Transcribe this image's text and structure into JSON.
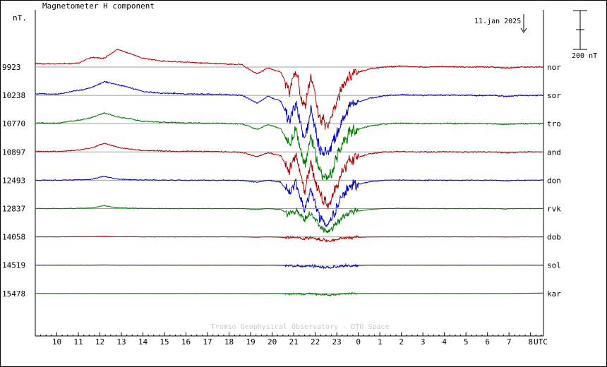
{
  "chart_data": {
    "type": "line",
    "title": "Magnetometer H component",
    "ylabel": "nT.",
    "date_label": "11.jan 2025",
    "scale_bar_label": "200 nT",
    "scale_bar_nT": 200,
    "watermark": "Tromso Geophysical Observatory - DTU Space",
    "x_axis_unit": "UTC",
    "x_tick_labels": [
      "10",
      "11",
      "12",
      "13",
      "14",
      "15",
      "16",
      "17",
      "18",
      "19",
      "20",
      "21",
      "22",
      "23",
      "0",
      "1",
      "2",
      "3",
      "4",
      "5",
      "6",
      "7",
      "8"
    ],
    "x_range_hours": [
      9.0,
      32.6
    ],
    "grid": false,
    "baseline_lines": true,
    "colors": {
      "red": "#b00000",
      "blue": "#0000c8",
      "green": "#007800",
      "baseline": "#a0a0a0"
    },
    "series": [
      {
        "name": "nor",
        "baseline_value": "9923",
        "color": "#b00000",
        "amp": 1.0,
        "values": [
          [
            9.0,
            18
          ],
          [
            10.0,
            16
          ],
          [
            11.0,
            20
          ],
          [
            11.6,
            50
          ],
          [
            12.2,
            45
          ],
          [
            12.8,
            90
          ],
          [
            13.4,
            70
          ],
          [
            14.0,
            45
          ],
          [
            14.8,
            32
          ],
          [
            16.0,
            25
          ],
          [
            17.5,
            18
          ],
          [
            18.6,
            12
          ],
          [
            19.3,
            -35
          ],
          [
            19.8,
            -5
          ],
          [
            20.4,
            -25
          ],
          [
            20.8,
            -120
          ],
          [
            21.1,
            -20
          ],
          [
            21.5,
            -230
          ],
          [
            21.8,
            -40
          ],
          [
            22.2,
            -260
          ],
          [
            22.6,
            -300
          ],
          [
            22.9,
            -220
          ],
          [
            23.2,
            -120
          ],
          [
            23.6,
            -40
          ],
          [
            24.5,
            -10
          ],
          [
            25.2,
            0
          ],
          [
            26.0,
            5
          ],
          [
            27.0,
            0
          ],
          [
            28.0,
            3
          ],
          [
            29.0,
            0
          ],
          [
            30.2,
            0
          ],
          [
            30.9,
            -6
          ],
          [
            31.6,
            0
          ],
          [
            32.6,
            0
          ]
        ]
      },
      {
        "name": "sor",
        "baseline_value": "10238",
        "color": "#0000c8",
        "amp": 1.05,
        "values": [
          [
            9.0,
            8
          ],
          [
            10.0,
            6
          ],
          [
            11.0,
            25
          ],
          [
            11.6,
            40
          ],
          [
            12.2,
            70
          ],
          [
            12.8,
            55
          ],
          [
            13.4,
            40
          ],
          [
            14.0,
            20
          ],
          [
            14.8,
            12
          ],
          [
            16.0,
            8
          ],
          [
            17.5,
            5
          ],
          [
            18.6,
            0
          ],
          [
            19.3,
            -40
          ],
          [
            19.8,
            -5
          ],
          [
            20.4,
            -30
          ],
          [
            20.8,
            -130
          ],
          [
            21.1,
            -30
          ],
          [
            21.5,
            -240
          ],
          [
            21.8,
            -60
          ],
          [
            22.2,
            -270
          ],
          [
            22.6,
            -310
          ],
          [
            22.9,
            -230
          ],
          [
            23.2,
            -130
          ],
          [
            23.6,
            -50
          ],
          [
            24.5,
            -15
          ],
          [
            25.2,
            -2
          ],
          [
            26.0,
            3
          ],
          [
            27.0,
            0
          ],
          [
            28.0,
            2
          ],
          [
            29.0,
            0
          ],
          [
            30.2,
            0
          ],
          [
            30.9,
            -5
          ],
          [
            31.6,
            0
          ],
          [
            32.6,
            0
          ]
        ]
      },
      {
        "name": "tro",
        "baseline_value": "10770",
        "color": "#007800",
        "amp": 1.0,
        "values": [
          [
            9.0,
            3
          ],
          [
            10.0,
            2
          ],
          [
            11.0,
            18
          ],
          [
            11.6,
            30
          ],
          [
            12.2,
            55
          ],
          [
            12.8,
            35
          ],
          [
            13.4,
            25
          ],
          [
            14.0,
            12
          ],
          [
            14.8,
            8
          ],
          [
            16.0,
            4
          ],
          [
            17.5,
            2
          ],
          [
            18.6,
            -2
          ],
          [
            19.3,
            -30
          ],
          [
            19.8,
            -5
          ],
          [
            20.4,
            -25
          ],
          [
            20.8,
            -110
          ],
          [
            21.1,
            -30
          ],
          [
            21.5,
            -220
          ],
          [
            21.8,
            -60
          ],
          [
            22.2,
            -250
          ],
          [
            22.6,
            -290
          ],
          [
            22.9,
            -210
          ],
          [
            23.2,
            -120
          ],
          [
            23.6,
            -45
          ],
          [
            24.5,
            -12
          ],
          [
            25.2,
            -2
          ],
          [
            26.0,
            2
          ],
          [
            27.0,
            0
          ],
          [
            28.0,
            1
          ],
          [
            29.0,
            0
          ],
          [
            30.2,
            0
          ],
          [
            30.9,
            -4
          ],
          [
            31.6,
            0
          ],
          [
            32.6,
            0
          ]
        ]
      },
      {
        "name": "and",
        "baseline_value": "10897",
        "color": "#b00000",
        "amp": 0.95,
        "values": [
          [
            9.0,
            3
          ],
          [
            10.0,
            2
          ],
          [
            11.0,
            10
          ],
          [
            11.6,
            20
          ],
          [
            12.2,
            45
          ],
          [
            12.8,
            25
          ],
          [
            13.4,
            15
          ],
          [
            14.0,
            8
          ],
          [
            14.8,
            5
          ],
          [
            16.0,
            3
          ],
          [
            17.5,
            2
          ],
          [
            18.6,
            -2
          ],
          [
            19.3,
            -25
          ],
          [
            19.8,
            -3
          ],
          [
            20.4,
            -20
          ],
          [
            20.8,
            -100
          ],
          [
            21.1,
            -25
          ],
          [
            21.5,
            -200
          ],
          [
            21.8,
            -50
          ],
          [
            22.2,
            -230
          ],
          [
            22.6,
            -270
          ],
          [
            22.9,
            -200
          ],
          [
            23.2,
            -110
          ],
          [
            23.6,
            -40
          ],
          [
            24.5,
            -10
          ],
          [
            25.2,
            0
          ],
          [
            26.0,
            2
          ],
          [
            27.0,
            0
          ],
          [
            28.0,
            1
          ],
          [
            29.0,
            0
          ],
          [
            30.2,
            0
          ],
          [
            30.9,
            -4
          ],
          [
            31.6,
            0
          ],
          [
            32.6,
            0
          ]
        ]
      },
      {
        "name": "don",
        "baseline_value": "12493",
        "color": "#0000c8",
        "amp": 0.8,
        "values": [
          [
            9.0,
            0
          ],
          [
            10.0,
            0
          ],
          [
            11.0,
            2
          ],
          [
            11.6,
            5
          ],
          [
            12.2,
            20
          ],
          [
            12.8,
            6
          ],
          [
            13.4,
            3
          ],
          [
            14.0,
            2
          ],
          [
            14.8,
            1
          ],
          [
            16.0,
            0
          ],
          [
            17.5,
            0
          ],
          [
            18.6,
            0
          ],
          [
            19.3,
            -10
          ],
          [
            19.8,
            0
          ],
          [
            20.4,
            -10
          ],
          [
            20.8,
            -70
          ],
          [
            21.1,
            -15
          ],
          [
            21.5,
            -150
          ],
          [
            21.8,
            -40
          ],
          [
            22.2,
            -190
          ],
          [
            22.6,
            -230
          ],
          [
            22.9,
            -170
          ],
          [
            23.2,
            -90
          ],
          [
            23.6,
            -30
          ],
          [
            24.5,
            -8
          ],
          [
            25.2,
            0
          ],
          [
            26.0,
            1
          ],
          [
            27.0,
            0
          ],
          [
            28.0,
            0
          ],
          [
            29.0,
            0
          ],
          [
            30.2,
            0
          ],
          [
            30.9,
            -3
          ],
          [
            31.6,
            0
          ],
          [
            32.6,
            0
          ]
        ]
      },
      {
        "name": "rvk",
        "baseline_value": "12837",
        "color": "#007800",
        "amp": 0.55,
        "values": [
          [
            9.0,
            0
          ],
          [
            10.0,
            0
          ],
          [
            11.0,
            1
          ],
          [
            11.6,
            3
          ],
          [
            12.2,
            15
          ],
          [
            12.8,
            4
          ],
          [
            13.4,
            2
          ],
          [
            14.0,
            1
          ],
          [
            14.8,
            0
          ],
          [
            16.0,
            0
          ],
          [
            17.5,
            0
          ],
          [
            18.6,
            0
          ],
          [
            19.3,
            -5
          ],
          [
            19.8,
            0
          ],
          [
            20.4,
            -5
          ],
          [
            20.8,
            -30
          ],
          [
            21.1,
            -10
          ],
          [
            21.5,
            -60
          ],
          [
            21.8,
            -20
          ],
          [
            22.2,
            -90
          ],
          [
            22.6,
            -120
          ],
          [
            22.9,
            -95
          ],
          [
            23.2,
            -50
          ],
          [
            23.6,
            -20
          ],
          [
            24.5,
            -5
          ],
          [
            25.2,
            0
          ],
          [
            26.0,
            1
          ],
          [
            27.0,
            0
          ],
          [
            28.0,
            0
          ],
          [
            29.0,
            0
          ],
          [
            30.2,
            0
          ],
          [
            30.9,
            -2
          ],
          [
            31.6,
            0
          ],
          [
            32.6,
            0
          ]
        ]
      },
      {
        "name": "dob",
        "baseline_value": "14058",
        "color": "#b00000",
        "amp": 0.25,
        "values": [
          [
            9.0,
            0
          ],
          [
            10.0,
            0
          ],
          [
            11.0,
            1
          ],
          [
            11.6,
            1
          ],
          [
            12.2,
            3
          ],
          [
            12.8,
            1
          ],
          [
            13.4,
            1
          ],
          [
            14.0,
            0
          ],
          [
            14.8,
            0
          ],
          [
            16.0,
            0
          ],
          [
            17.5,
            0
          ],
          [
            18.6,
            0
          ],
          [
            19.3,
            -2
          ],
          [
            19.8,
            0
          ],
          [
            20.4,
            -2
          ],
          [
            20.8,
            -5
          ],
          [
            21.1,
            -3
          ],
          [
            21.5,
            -8
          ],
          [
            21.8,
            -5
          ],
          [
            22.2,
            -12
          ],
          [
            22.6,
            -20
          ],
          [
            22.9,
            -15
          ],
          [
            23.2,
            -8
          ],
          [
            23.6,
            -3
          ],
          [
            24.5,
            -1
          ],
          [
            25.2,
            0
          ],
          [
            26.0,
            0
          ],
          [
            27.0,
            0
          ],
          [
            28.0,
            0
          ],
          [
            29.0,
            0
          ],
          [
            30.2,
            0
          ],
          [
            30.9,
            -1
          ],
          [
            31.6,
            0
          ],
          [
            32.6,
            0
          ]
        ]
      },
      {
        "name": "sol",
        "baseline_value": "14519",
        "color": "#0000c8",
        "amp": 0.2,
        "values": [
          [
            9.0,
            0
          ],
          [
            10.0,
            0
          ],
          [
            11.0,
            0
          ],
          [
            11.6,
            0
          ],
          [
            12.2,
            1
          ],
          [
            12.8,
            0
          ],
          [
            13.4,
            0
          ],
          [
            14.0,
            0
          ],
          [
            14.8,
            0
          ],
          [
            16.0,
            0
          ],
          [
            17.5,
            0
          ],
          [
            18.6,
            0
          ],
          [
            19.3,
            -1
          ],
          [
            19.8,
            0
          ],
          [
            20.4,
            -1
          ],
          [
            20.8,
            -3
          ],
          [
            21.1,
            -2
          ],
          [
            21.5,
            -5
          ],
          [
            21.8,
            -4
          ],
          [
            22.2,
            -8
          ],
          [
            22.6,
            -12
          ],
          [
            22.9,
            -9
          ],
          [
            23.2,
            -5
          ],
          [
            23.6,
            -2
          ],
          [
            24.5,
            0
          ],
          [
            25.2,
            0
          ],
          [
            26.0,
            0
          ],
          [
            27.0,
            0
          ],
          [
            28.0,
            0
          ],
          [
            29.0,
            0
          ],
          [
            30.2,
            0
          ],
          [
            30.9,
            0
          ],
          [
            31.6,
            0
          ],
          [
            32.6,
            0
          ]
        ]
      },
      {
        "name": "kar",
        "baseline_value": "15478",
        "color": "#007800",
        "amp": 0.15,
        "values": [
          [
            9.0,
            0
          ],
          [
            10.0,
            0
          ],
          [
            11.0,
            0
          ],
          [
            11.6,
            0
          ],
          [
            12.2,
            0
          ],
          [
            12.8,
            0
          ],
          [
            13.4,
            0
          ],
          [
            14.0,
            0
          ],
          [
            14.8,
            0
          ],
          [
            16.0,
            0
          ],
          [
            17.5,
            0
          ],
          [
            18.6,
            0
          ],
          [
            19.3,
            -1
          ],
          [
            19.8,
            0
          ],
          [
            20.4,
            -1
          ],
          [
            20.8,
            -2
          ],
          [
            21.1,
            -1
          ],
          [
            21.5,
            -3
          ],
          [
            21.8,
            -2
          ],
          [
            22.2,
            -5
          ],
          [
            22.6,
            -8
          ],
          [
            22.9,
            -6
          ],
          [
            23.2,
            -3
          ],
          [
            23.6,
            -1
          ],
          [
            24.5,
            0
          ],
          [
            25.2,
            0
          ],
          [
            26.0,
            0
          ],
          [
            27.0,
            0
          ],
          [
            28.0,
            0
          ],
          [
            29.0,
            0
          ],
          [
            30.2,
            0
          ],
          [
            30.9,
            0
          ],
          [
            31.6,
            1
          ],
          [
            32.6,
            2
          ]
        ]
      }
    ]
  }
}
